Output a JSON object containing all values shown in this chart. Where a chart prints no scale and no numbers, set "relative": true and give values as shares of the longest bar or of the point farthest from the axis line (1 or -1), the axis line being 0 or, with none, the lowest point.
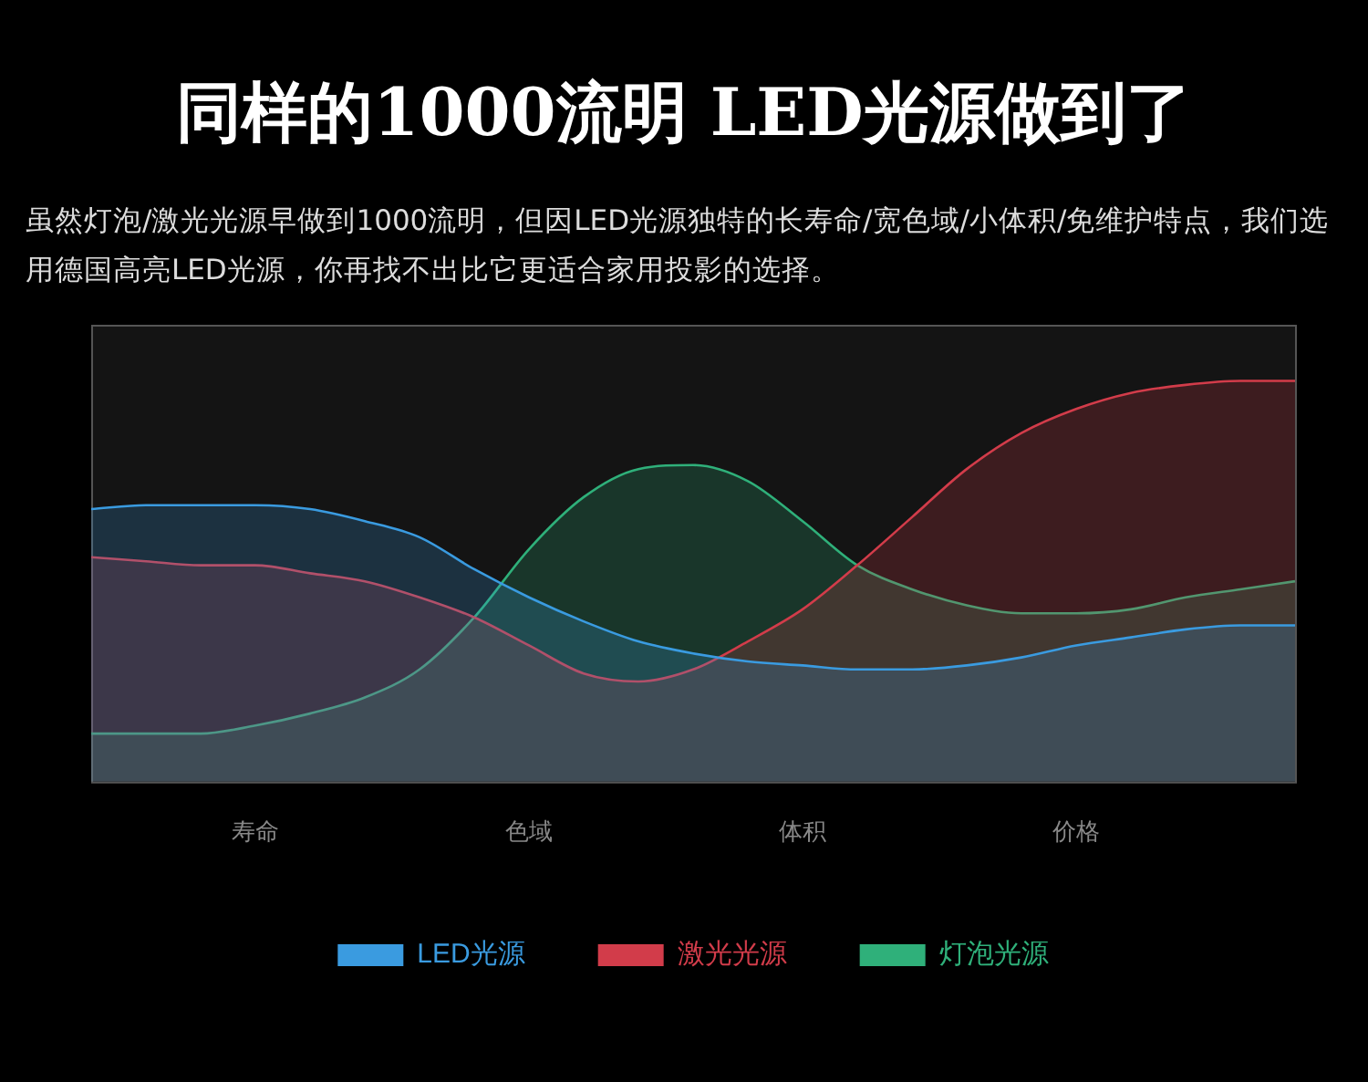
{
  "chart_data": {
    "type": "area",
    "title": "同样的1000流明 LED光源做到了",
    "subtitle": "虽然灯泡/激光光源早做到1000流明，但因LED光源独特的长寿命/宽色域/小体积/免维护特点，我们选用德国高亮LED光源，你再找不出比它更适合家用投影的选择。",
    "relative": true,
    "legend": "bottom",
    "categories": [
      null,
      null,
      null,
      "寿命",
      null,
      null,
      null,
      null,
      "色域",
      null,
      null,
      null,
      null,
      "体积",
      null,
      null,
      null,
      null,
      "价格",
      null,
      null,
      null,
      null
    ],
    "series": [
      {
        "name": "LED光源",
        "color": "#3a9be0",
        "values": [
          0.68,
          0.69,
          0.69,
          0.69,
          0.68,
          0.65,
          0.61,
          0.53,
          0.46,
          0.4,
          0.35,
          0.32,
          0.3,
          0.29,
          0.28,
          0.28,
          0.29,
          0.31,
          0.34,
          0.36,
          0.38,
          0.39,
          0.39
        ]
      },
      {
        "name": "激光光源",
        "color": "#d23c4a",
        "values": [
          0.56,
          0.55,
          0.54,
          0.54,
          0.52,
          0.5,
          0.46,
          0.41,
          0.34,
          0.27,
          0.25,
          0.28,
          0.35,
          0.43,
          0.54,
          0.66,
          0.78,
          0.87,
          0.93,
          0.97,
          0.99,
          1.0,
          1.0
        ]
      },
      {
        "name": "灯泡光源",
        "color": "#2fb07a",
        "values": [
          0.12,
          0.12,
          0.12,
          0.14,
          0.17,
          0.21,
          0.28,
          0.41,
          0.58,
          0.71,
          0.78,
          0.79,
          0.75,
          0.65,
          0.54,
          0.48,
          0.44,
          0.42,
          0.42,
          0.43,
          0.46,
          0.48,
          0.5
        ]
      }
    ]
  }
}
